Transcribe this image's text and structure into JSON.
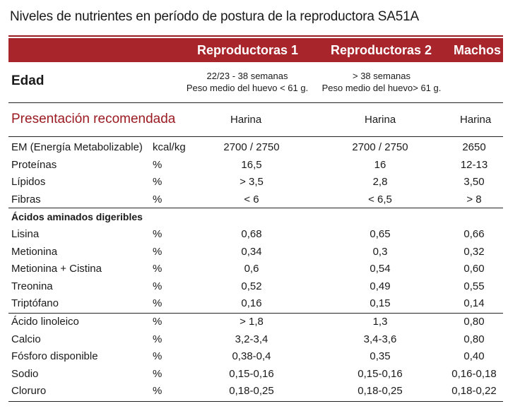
{
  "title": "Niveles de nutrientes en período de postura de la reproductora SA51A",
  "header": {
    "col1": "Reproductoras 1",
    "col2": "Reproductoras 2",
    "col3": "Machos"
  },
  "edad": {
    "label": "Edad",
    "r1_line1": "22/23 - 38 semanas",
    "r1_line2": "Peso medio del huevo < 61 g.",
    "r2_line1": "> 38 semanas",
    "r2_line2": "Peso medio del huevo> 61 g."
  },
  "presentacion": {
    "label": "Presentación recomendada",
    "r1": "Harina",
    "r2": "Harina",
    "m": "Harina"
  },
  "group1": [
    {
      "name": "EM (Energía Metabolizable)",
      "unit": "kcal/kg",
      "r1": "2700 / 2750",
      "r2": "2700 / 2750",
      "m": "2650"
    },
    {
      "name": "Proteínas",
      "unit": "%",
      "r1": "16,5",
      "r2": "16",
      "m": "12-13"
    },
    {
      "name": "Lípidos",
      "unit": "%",
      "r1": "> 3,5",
      "r2": "2,8",
      "m": "3,50"
    },
    {
      "name": "Fibras",
      "unit": "%",
      "r1": "< 6",
      "r2": "< 6,5",
      "m": "> 8"
    }
  ],
  "section_amino": "Ácidos aminados digeribles",
  "group2": [
    {
      "name": "Lisina",
      "unit": "%",
      "r1": "0,68",
      "r2": "0,65",
      "m": "0,66"
    },
    {
      "name": "Metionina",
      "unit": "%",
      "r1": "0,34",
      "r2": "0,3",
      "m": "0,32"
    },
    {
      "name": "Metionina + Cistina",
      "unit": "%",
      "r1": "0,6",
      "r2": "0,54",
      "m": "0,60"
    },
    {
      "name": "Treonina",
      "unit": "%",
      "r1": "0,52",
      "r2": "0,49",
      "m": "0,55"
    },
    {
      "name": "Triptófano",
      "unit": "%",
      "r1": "0,16",
      "r2": "0,15",
      "m": "0,14"
    }
  ],
  "group3": [
    {
      "name": "Ácido linoleico",
      "unit": "%",
      "r1": "> 1,8",
      "r2": "1,3",
      "m": "0,80"
    },
    {
      "name": "Calcio",
      "unit": "%",
      "r1": "3,2-3,4",
      "r2": "3,4-3,6",
      "m": "0,80"
    },
    {
      "name": "Fósforo disponible",
      "unit": "%",
      "r1": "0,38-0,4",
      "r2": "0,35",
      "m": "0,40"
    },
    {
      "name": "Sodio",
      "unit": "%",
      "r1": "0,15-0,16",
      "r2": "0,15-0,16",
      "m": "0,16-0,18"
    },
    {
      "name": "Cloruro",
      "unit": "%",
      "r1": "0,18-0,25",
      "r2": "0,18-0,25",
      "m": "0,18-0,22"
    }
  ],
  "colors": {
    "accent": "#a7252b",
    "accent_text": "#9b1b22"
  }
}
